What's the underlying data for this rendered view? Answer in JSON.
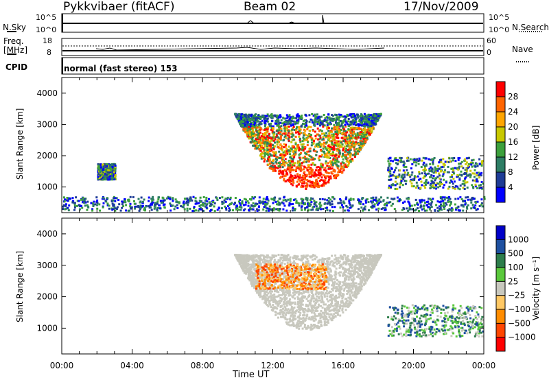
{
  "header": {
    "station": "Pykkvibaer (fitACF)",
    "beam": "Beam 02",
    "date": "17/Nov/2009"
  },
  "param_panels": {
    "nsky": {
      "left_label": "N.Sky",
      "right_label": "N.Search",
      "left_ticks": [
        "10^5",
        "10^0"
      ],
      "right_ticks": [
        "10^5",
        "10^0"
      ]
    },
    "freq": {
      "left_label_top": "Freq.",
      "left_label_bottom": "[MHz]",
      "left_ticks": [
        "18",
        "8"
      ],
      "right_ticks": [
        "60",
        "0"
      ],
      "right_label": "Nave"
    },
    "cpid": {
      "label": "CPID",
      "mode_text": "normal (fast stereo) 153"
    }
  },
  "colors": {
    "power_scale": [
      "#0000ff",
      "#1e3c96",
      "#2d7d64",
      "#3ca03c",
      "#c8c800",
      "#ffa500",
      "#ff6400",
      "#ff0000"
    ],
    "velocity_scale": [
      "#0000c8",
      "#1e50a0",
      "#2d7d4b",
      "#5ac83c",
      "#c8c8be",
      "#ffc864",
      "#ff8c00",
      "#ff4600",
      "#ff0000"
    ]
  },
  "chart_data": [
    {
      "type": "heatmap",
      "title": "",
      "xlabel": "",
      "ylabel": "Slant Range [km]",
      "x_range_hours": [
        0,
        24
      ],
      "ylim": [
        180,
        4500
      ],
      "y_ticks": [
        1000,
        2000,
        3000,
        4000
      ],
      "colorbar": {
        "label": "Power [dB]",
        "ticks": [
          "28",
          "24",
          "20",
          "16",
          "12",
          "8",
          "4"
        ]
      },
      "echo_regions": [
        {
          "name": "arc_main",
          "t": [
            9.8,
            18.1
          ],
          "range_km": [
            900,
            3300
          ],
          "level": "high"
        },
        {
          "name": "early_patch",
          "t": [
            2.0,
            3.0
          ],
          "range_km": [
            1200,
            1700
          ],
          "level": "medium"
        },
        {
          "name": "ground_band",
          "t": [
            0,
            24
          ],
          "range_km": [
            200,
            650
          ],
          "level": "low"
        },
        {
          "name": "evening_tail",
          "t": [
            18.5,
            23.9
          ],
          "range_km": [
            900,
            1900
          ],
          "level": "low"
        }
      ]
    },
    {
      "type": "heatmap",
      "title": "",
      "xlabel": "Time UT",
      "ylabel": "Slant Range [km]",
      "x_range_hours": [
        0,
        24
      ],
      "x_ticks": [
        "00:00",
        "04:00",
        "08:00",
        "12:00",
        "16:00",
        "20:00",
        "00:00"
      ],
      "ylim": [
        180,
        4500
      ],
      "y_ticks": [
        1000,
        2000,
        3000,
        4000
      ],
      "colorbar": {
        "label": "Velocity [m s⁻¹]",
        "ticks": [
          "1000",
          "500",
          "100",
          "25",
          "−25",
          "−100",
          "−500",
          "−1000"
        ]
      },
      "echo_regions": [
        {
          "name": "arc_main",
          "t": [
            9.8,
            18.1
          ],
          "range_km": [
            900,
            3300
          ],
          "velocity": "near zero / ground scatter"
        },
        {
          "name": "arc_upper_flow",
          "t": [
            11.0,
            15.0
          ],
          "range_km": [
            2200,
            3000
          ],
          "velocity": "-100 to -500"
        },
        {
          "name": "evening_tail",
          "t": [
            18.5,
            23.9
          ],
          "range_km": [
            700,
            1700
          ],
          "velocity": "100 to 500"
        }
      ]
    }
  ]
}
